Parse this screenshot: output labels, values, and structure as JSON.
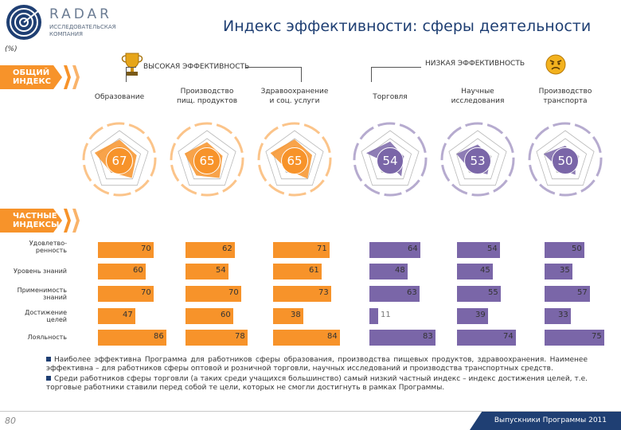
{
  "logo": {
    "name": "RADAR",
    "subtitle": "ИССЛЕДОВАТЕЛЬСКАЯ КОМПАНИЯ"
  },
  "title": "Индекс эффективности: сферы деятельности",
  "unit": "(%)",
  "overall_label": [
    "ОБЩИЙ",
    "ИНДЕКС"
  ],
  "partial_label": [
    "ЧАСТНЫЕ",
    "ИНДЕКСЫ"
  ],
  "high_band": "ВЫСОКАЯ ЭФФЕКТИВНОСТЬ",
  "low_band": "НИЗКАЯ ЭФФЕКТИВНОСТЬ",
  "colors": {
    "orange": "#f7932a",
    "purple": "#7a66a8",
    "navy": "#1f3f73"
  },
  "icons": {
    "high": "trophy-icon",
    "low": "angry-face-icon"
  },
  "chart_data": {
    "type": "bar",
    "title": "Индекс эффективности: сферы деятельности",
    "unit": "%",
    "categories": [
      "Образование",
      "Производство пищ. продуктов",
      "Здравоохранение и соц. услуги",
      "Торговля",
      "Научные исследования",
      "Производство транспорта"
    ],
    "headers": [
      [
        "Образование"
      ],
      [
        "Производство",
        "пищ. продуктов"
      ],
      [
        "Здравоохранение",
        "и соц. услуги"
      ],
      [
        "Торговля"
      ],
      [
        "Научные",
        "исследования"
      ],
      [
        "Производство",
        "транспорта"
      ]
    ],
    "groups": [
      "high",
      "high",
      "high",
      "low",
      "low",
      "low"
    ],
    "overall_index": [
      67,
      65,
      65,
      54,
      53,
      50
    ],
    "row_labels": [
      [
        "Удовлетво-",
        "ренность"
      ],
      [
        "Уровень знаний"
      ],
      [
        "Применимость",
        "знаний"
      ],
      [
        "Достижение",
        "целей"
      ],
      [
        "Лояльность"
      ]
    ],
    "series": [
      {
        "name": "Удовлетворенность",
        "values": [
          70,
          62,
          71,
          64,
          54,
          50
        ]
      },
      {
        "name": "Уровень знаний",
        "values": [
          60,
          54,
          61,
          48,
          45,
          35
        ]
      },
      {
        "name": "Применимость знаний",
        "values": [
          70,
          70,
          73,
          63,
          55,
          57
        ]
      },
      {
        "name": "Достижение целей",
        "values": [
          47,
          60,
          38,
          11,
          39,
          33
        ]
      },
      {
        "name": "Лояльность",
        "values": [
          86,
          78,
          84,
          83,
          74,
          75
        ]
      }
    ],
    "xlim": [
      0,
      100
    ]
  },
  "notes": [
    "Наиболее эффективна Программа для работников сферы образования, производства пищевых продуктов, здравоохранения. Наименее эффективна – для работников сферы оптовой и розничной торговли, научных исследований и производства транспортных средств.",
    "Среди работников сферы торговли (а таких среди учащихся большинство) самый низкий частный индекс – индекс достижения целей, т.е. торговые работники ставили перед собой те цели, которых не смогли достигнуть в рамках Программы."
  ],
  "page_number": "80",
  "footer": "Выпускники Программы 2011"
}
